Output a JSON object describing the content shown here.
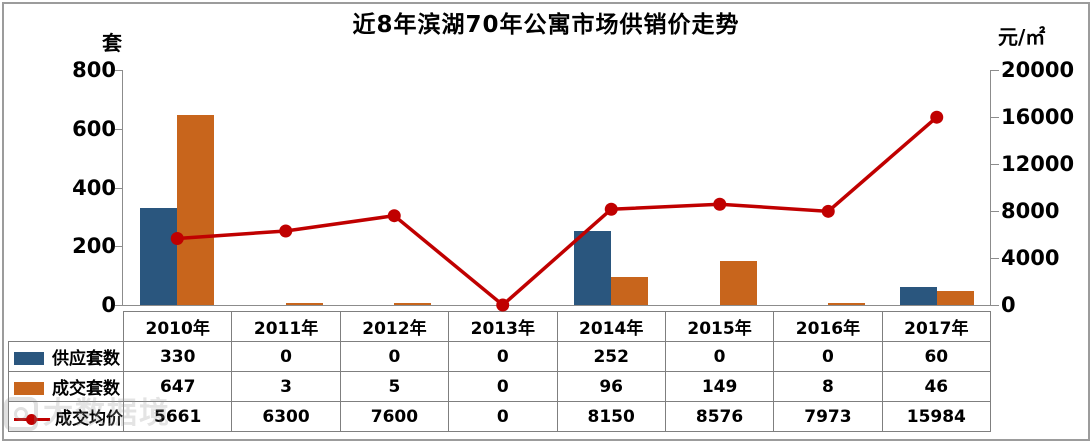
{
  "title": "近8年滨湖70年公寓市场供销价走势",
  "left_axis": {
    "unit": "套",
    "ticks": [
      "800",
      "600",
      "400",
      "200",
      "0"
    ],
    "max": 800
  },
  "right_axis": {
    "unit": "元/㎡",
    "ticks": [
      "20000",
      "16000",
      "12000",
      "8000",
      "4000",
      "0"
    ],
    "max": 20000
  },
  "chart_data": {
    "type": "combo",
    "title": "近8年滨湖70年公寓市场供销价走势",
    "categories": [
      "2010年",
      "2011年",
      "2012年",
      "2013年",
      "2014年",
      "2015年",
      "2016年",
      "2017年"
    ],
    "series": [
      {
        "name": "供应套数",
        "type": "bar",
        "axis": "left",
        "color": "#2a567e",
        "values": [
          330,
          0,
          0,
          0,
          252,
          0,
          0,
          60
        ]
      },
      {
        "name": "成交套数",
        "type": "bar",
        "axis": "left",
        "color": "#c8651c",
        "values": [
          647,
          3,
          5,
          0,
          96,
          149,
          8,
          46
        ]
      },
      {
        "name": "成交均价",
        "type": "line",
        "axis": "right",
        "color": "#c00000",
        "values": [
          5661,
          6300,
          7600,
          0,
          8150,
          8576,
          7973,
          15984
        ]
      }
    ],
    "left_ylim": [
      0,
      800
    ],
    "right_ylim": [
      0,
      20000
    ],
    "xlabel": "",
    "ylabel_left": "套",
    "ylabel_right": "元/㎡",
    "grid": false,
    "legend_position": "table-row-labels"
  },
  "watermark": {
    "text": "大数据境",
    "logo": "camera-icon"
  },
  "colors": {
    "supply_bar": "#2a567e",
    "sold_bar": "#c8651c",
    "price_line": "#c00000",
    "axis_line": "#8c8c8c",
    "table_border": "#7f7f7f",
    "frame": "#9c9c9c",
    "title_text": "#000000"
  }
}
